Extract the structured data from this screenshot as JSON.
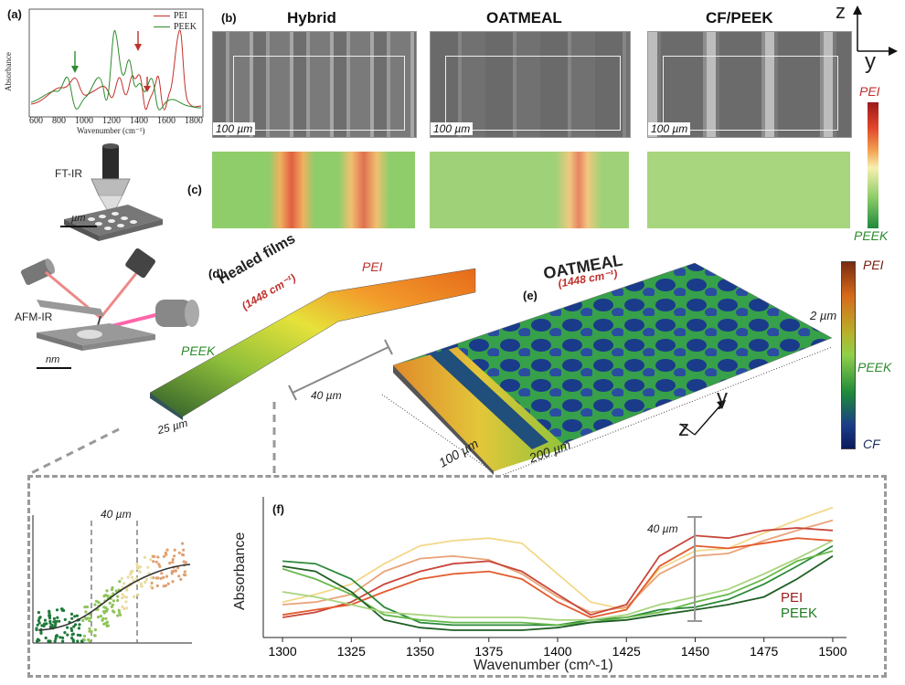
{
  "panels": {
    "a": "(a)",
    "b": "(b)",
    "c": "(c)",
    "d": "(d)",
    "e": "(e)",
    "f": "(f)"
  },
  "panel_a": {
    "legend": [
      {
        "name": "PEI",
        "color": "#c0302c"
      },
      {
        "name": "PEEK",
        "color": "#2e8b2e"
      }
    ],
    "ylabel": "Absorbance",
    "xlabel": "Wavenumber (cm⁻¹)",
    "xticks": [
      "600",
      "800",
      "1000",
      "1200",
      "1400",
      "1600",
      "1800"
    ]
  },
  "ftir": {
    "label": "FT-IR",
    "scale": "µm"
  },
  "afmir": {
    "label": "AFM-IR",
    "scale": "nm"
  },
  "sem": {
    "headers": [
      "Hybrid",
      "OATMEAL",
      "CF/PEEK"
    ],
    "scale": "100 µm"
  },
  "axes_zy": {
    "z": "z",
    "y": "y"
  },
  "colorbar1": {
    "top": "PEI",
    "bottom": "PEEK"
  },
  "colorbar2": {
    "top": "PEI",
    "mid": "PEEK",
    "bottom": "CF"
  },
  "panel_d": {
    "title": "Healed films",
    "wavenumber": "(1448 cm⁻¹)",
    "pei": "PEI",
    "peek": "PEEK",
    "width": "40 µm",
    "depth": "25 µm"
  },
  "panel_e": {
    "title": "OATMEAL",
    "wavenumber": "(1448 cm⁻¹)",
    "height": "2 µm",
    "dim1": "100 µm",
    "dim2": "200 µm",
    "y": "y",
    "z": "z"
  },
  "inset_scatter": {
    "label": "40 µm"
  },
  "panel_f": {
    "ylabel": "Absorbance",
    "xlabel": "Wavenumber (cm^-1)",
    "bar_label": "40 µm",
    "legend": [
      {
        "name": "PEI",
        "color": "#9b1b1b"
      },
      {
        "name": "PEEK",
        "color": "#1f7a1f"
      }
    ]
  },
  "chart_data": {
    "type": "line",
    "xlabel": "Wavenumber (cm^-1)",
    "ylabel": "Absorbance",
    "xticks": [
      "1300",
      "1325",
      "1350",
      "1375",
      "1400",
      "1425",
      "1450",
      "1475",
      "1500"
    ],
    "xlim": [
      1293,
      1505
    ],
    "x": [
      1300,
      1312,
      1325,
      1337,
      1350,
      1362,
      1375,
      1387,
      1400,
      1412,
      1425,
      1437,
      1450,
      1462,
      1475,
      1487,
      1500
    ],
    "series": [
      {
        "color": "#f2d88a",
        "values": [
          0.22,
          0.28,
          0.36,
          0.52,
          0.66,
          0.7,
          0.72,
          0.68,
          0.44,
          0.22,
          0.16,
          0.48,
          0.62,
          0.64,
          0.76,
          0.86,
          0.96
        ]
      },
      {
        "color": "#e9a47a",
        "values": [
          0.2,
          0.22,
          0.28,
          0.46,
          0.56,
          0.58,
          0.55,
          0.44,
          0.26,
          0.14,
          0.18,
          0.44,
          0.58,
          0.6,
          0.7,
          0.78,
          0.86
        ]
      },
      {
        "color": "#c8463a",
        "values": [
          0.1,
          0.14,
          0.22,
          0.36,
          0.46,
          0.52,
          0.54,
          0.46,
          0.28,
          0.12,
          0.2,
          0.58,
          0.74,
          0.72,
          0.78,
          0.8,
          0.78
        ]
      },
      {
        "color": "#e35b2e",
        "values": [
          0.12,
          0.16,
          0.2,
          0.3,
          0.4,
          0.44,
          0.46,
          0.4,
          0.22,
          0.1,
          0.16,
          0.5,
          0.66,
          0.64,
          0.68,
          0.72,
          0.7
        ]
      },
      {
        "color": "#2c8a3a",
        "values": [
          0.54,
          0.52,
          0.4,
          0.18,
          0.06,
          0.04,
          0.04,
          0.04,
          0.04,
          0.08,
          0.1,
          0.16,
          0.18,
          0.24,
          0.36,
          0.5,
          0.66
        ]
      },
      {
        "color": "#66b84a",
        "values": [
          0.48,
          0.4,
          0.28,
          0.12,
          0.08,
          0.06,
          0.06,
          0.06,
          0.04,
          0.06,
          0.1,
          0.14,
          0.22,
          0.28,
          0.4,
          0.54,
          0.62
        ]
      },
      {
        "color": "#1f5f24",
        "values": [
          0.5,
          0.46,
          0.3,
          0.08,
          0.02,
          0.0,
          0.0,
          0.0,
          0.02,
          0.06,
          0.08,
          0.12,
          0.16,
          0.2,
          0.26,
          0.4,
          0.58
        ]
      },
      {
        "color": "#a9d37d",
        "values": [
          0.3,
          0.26,
          0.2,
          0.14,
          0.12,
          0.1,
          0.1,
          0.1,
          0.08,
          0.08,
          0.12,
          0.2,
          0.26,
          0.32,
          0.44,
          0.56,
          0.7
        ]
      }
    ]
  }
}
